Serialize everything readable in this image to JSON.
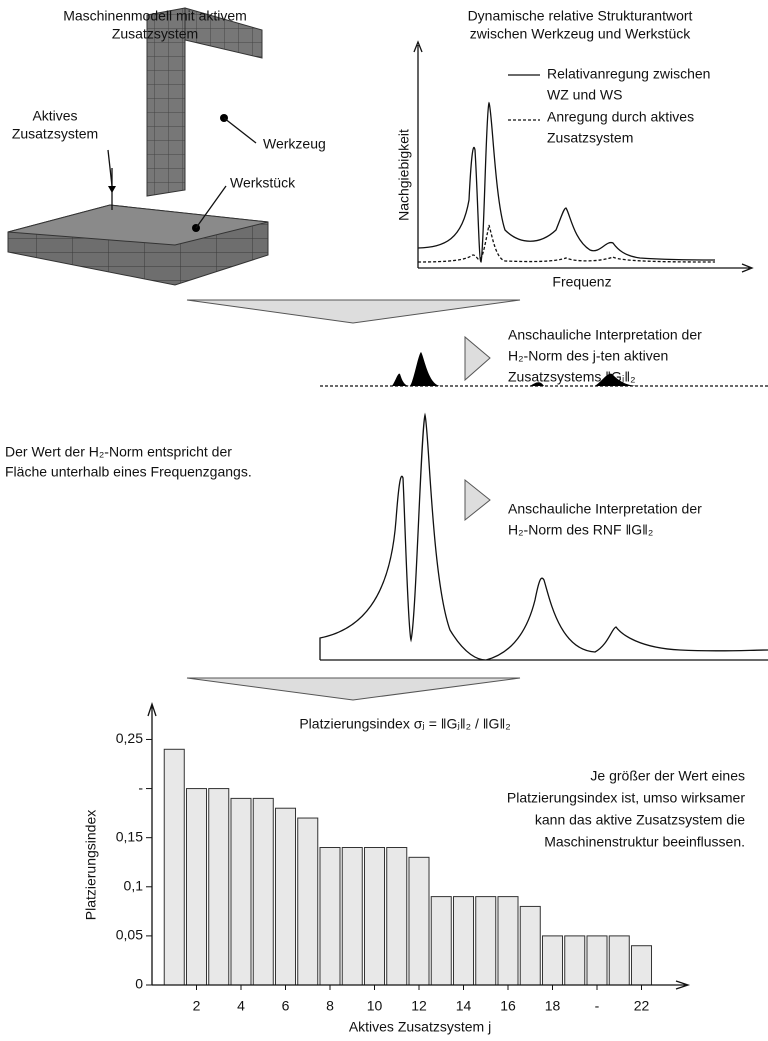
{
  "diagram": {
    "model_title": [
      "Maschinenmodell mit aktivem",
      "Zusatzsystem"
    ],
    "response_title": [
      "Dynamische relative Strukturantwort",
      "zwischen Werkzeug und Werkstück"
    ],
    "label_active": [
      "Aktives",
      "Zusatzsystem"
    ],
    "label_tool": "Werkzeug",
    "label_workpiece": "Werkstück",
    "legend_solid": [
      "Relativanregung zwischen",
      "WZ und WS"
    ],
    "legend_dashed": [
      "Anregung durch aktives",
      "Zusatzsystem"
    ],
    "axis_y": "Nachgiebigkeit",
    "axis_x": "Frequenz",
    "interp_j": [
      "Anschauliche Interpretation der",
      "H₂-Norm des j-ten aktiven",
      "Zusatzsystems ‖Gⱼ‖₂"
    ],
    "area_note": [
      "Der Wert der H₂-Norm entspricht der",
      "Fläche unterhalb eines Frequenzgangs."
    ],
    "interp_rnf": [
      "Anschauliche Interpretation der",
      "H₂-Norm des RNF ‖G‖₂"
    ]
  },
  "chart_data": {
    "type": "bar",
    "title": "Platzierungsindex σⱼ = ‖Gⱼ‖₂ / ‖G‖₂",
    "annotation": [
      "Je größer der Wert eines",
      "Platzierungsindex ist, umso wirksamer",
      "kann das aktive Zusatzsystem die",
      "Maschinenstruktur beeinflussen."
    ],
    "xlabel": "Aktives Zusatzsystem j",
    "ylabel": "Platzierungsindex",
    "x": [
      1,
      2,
      3,
      4,
      5,
      6,
      7,
      8,
      9,
      10,
      11,
      12,
      13,
      14,
      15,
      16,
      17,
      18,
      19,
      20,
      21,
      22
    ],
    "values": [
      0.24,
      0.2,
      0.2,
      0.19,
      0.19,
      0.18,
      0.17,
      0.14,
      0.14,
      0.14,
      0.14,
      0.13,
      0.09,
      0.09,
      0.09,
      0.09,
      0.08,
      0.05,
      0.05,
      0.05,
      0.05,
      0.04
    ],
    "color": "#e8e8e8",
    "xlim": [
      0,
      24
    ],
    "xticks": [
      2,
      4,
      6,
      8,
      10,
      12,
      14,
      16,
      18,
      {
        "value": 20,
        "label": "-"
      },
      22
    ],
    "ylim": [
      0,
      0.28
    ],
    "yticks": [
      0,
      {
        "value": 0.05,
        "label": "0,05"
      },
      {
        "value": 0.1,
        "label": "0,1"
      },
      {
        "value": 0.15,
        "label": "0,15"
      },
      {
        "value": 0.2,
        "label": "-"
      },
      {
        "value": 0.25,
        "label": "0,25"
      }
    ]
  }
}
